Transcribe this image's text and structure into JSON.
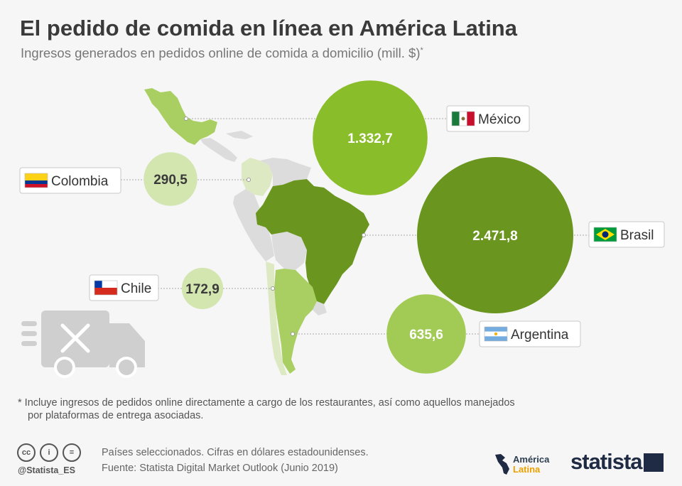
{
  "title": "El pedido de comida en línea en América Latina",
  "subtitle": "Ingresos generados en pedidos online de comida a domicilio (mill. $)",
  "subtitle_mark": "*",
  "chart_data": {
    "type": "bubble",
    "unit": "mill. $",
    "points": [
      {
        "country": "México",
        "value": 1332.7,
        "label": "1.332,7",
        "color": "#8abd2a"
      },
      {
        "country": "Colombia",
        "value": 290.5,
        "label": "290,5",
        "color": "#d4e6b0"
      },
      {
        "country": "Brasil",
        "value": 2471.8,
        "label": "2.471,8",
        "color": "#6a961f"
      },
      {
        "country": "Chile",
        "value": 172.9,
        "label": "172,9",
        "color": "#d4e6b0"
      },
      {
        "country": "Argentina",
        "value": 635.6,
        "label": "635,6",
        "color": "#a2cb56"
      }
    ]
  },
  "footnote": {
    "line1": "* Incluye ingresos de pedidos online directamente a cargo de los restaurantes, así como aquellos manejados",
    "line2": "por plataformas de entrega asociadas."
  },
  "footer": {
    "handle": "@Statista_ES",
    "source_line1": "Países seleccionados. Cifras en dólares estadounidenses.",
    "source_line2": "Fuente: Statista Digital Market Outlook (Junio 2019)",
    "partner_line1": "América",
    "partner_line2": "Latina",
    "brand": "statista"
  },
  "icons": [
    "cc-icon",
    "by-icon",
    "nd-icon",
    "delivery-truck-icon",
    "fork-knife-icon"
  ]
}
